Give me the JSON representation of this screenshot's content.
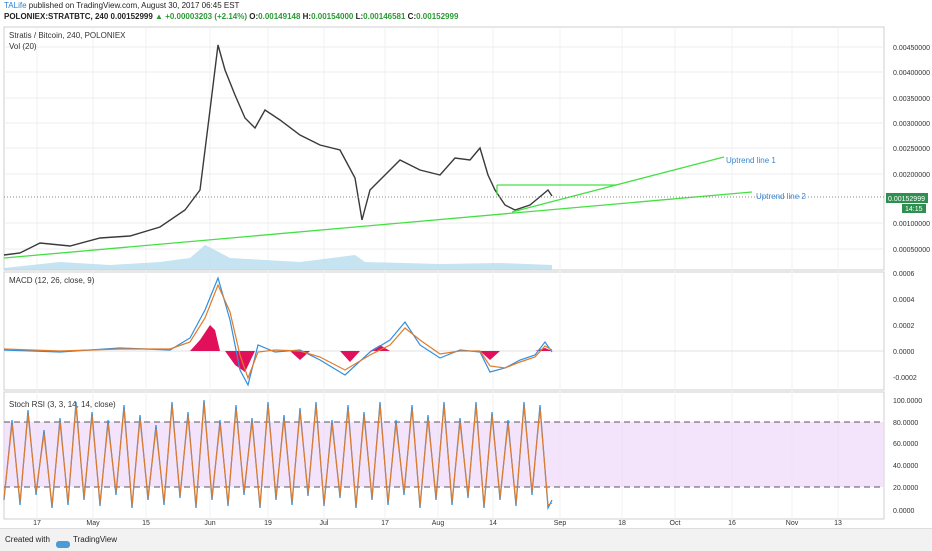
{
  "header": {
    "author": "TALife",
    "published": "published on TradingView.com, August 30, 2017 06:45 EST",
    "symbol": "POLONIEX:STRATBTC, 240",
    "last": "0.00152999",
    "change": "▲ +0.00003203 (+2.14%)",
    "o_label": "O:",
    "o": "0.00149148",
    "h_label": "H:",
    "h": "0.00154000",
    "l_label": "L:",
    "l": "0.00146581",
    "c_label": "C:",
    "c": "0.00152999"
  },
  "price_pane": {
    "title": "Stratis / Bitcoin, 240, POLONIEX",
    "volume_label": "Vol (20)",
    "y_ticks": [
      "0.00450000",
      "0.00400000",
      "0.00350000",
      "0.00300000",
      "0.00250000",
      "0.00200000",
      "0.00100000",
      "0.00050000"
    ],
    "price_tag": "0.00152999",
    "time_tag": "14:15",
    "annotations": [
      "Uptrend line 1",
      "Uptrend line 2"
    ]
  },
  "macd_pane": {
    "title": "MACD (12, 26, close, 9)",
    "y_ticks": [
      "0.0006",
      "0.0004",
      "0.0002",
      "0.0000",
      "-0.0002"
    ]
  },
  "rsi_pane": {
    "title": "Stoch RSI (3, 3, 14, 14, close)",
    "y_ticks": [
      "100.0000",
      "80.0000",
      "60.0000",
      "40.0000",
      "20.0000",
      "0.0000"
    ]
  },
  "x_axis": [
    "17",
    "May",
    "15",
    "Jun",
    "19",
    "Jul",
    "17",
    "Aug",
    "14",
    "Sep",
    "18",
    "Oct",
    "16",
    "Nov",
    "13"
  ],
  "footer": {
    "created_with": "Created with",
    "brand": "TradingView"
  },
  "colors": {
    "trendline": "#44e044",
    "price": "#3a3a3a",
    "macd": "#2f8fe0",
    "signal": "#e07b2a",
    "hist": "#e0105a",
    "rsi_band": "#f0d8fa"
  }
}
